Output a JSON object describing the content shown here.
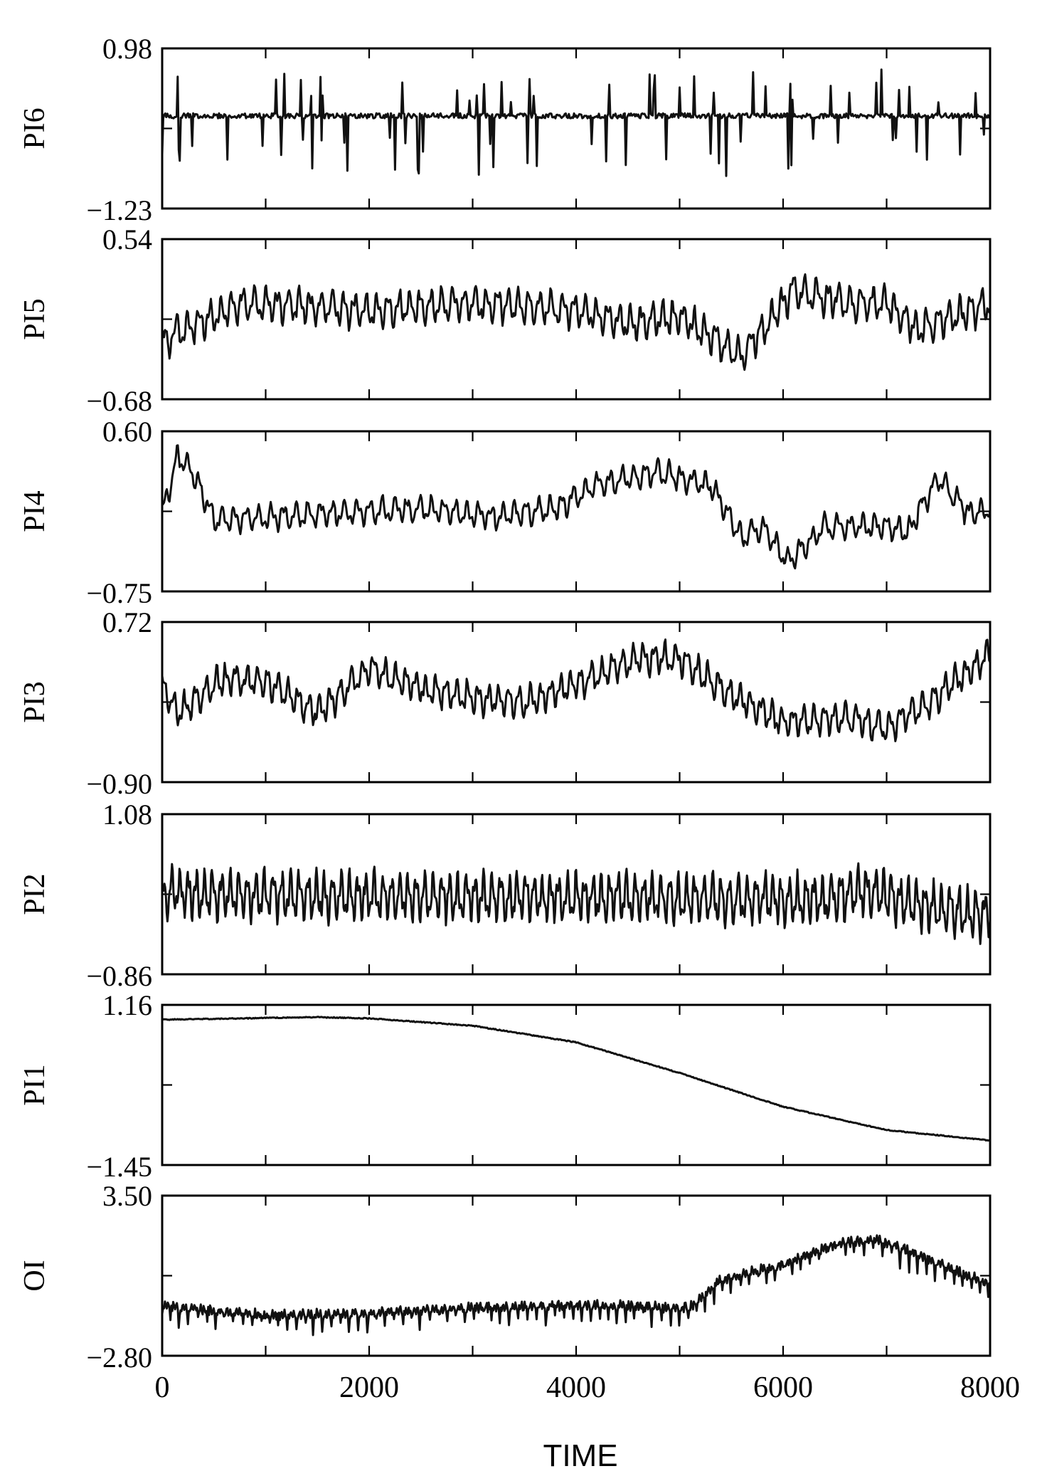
{
  "chart_data": {
    "type": "line",
    "xlabel": "TIME",
    "xlim": [
      0,
      8000
    ],
    "xticks": [
      0,
      2000,
      4000,
      6000,
      8000
    ],
    "panels": [
      {
        "name": "PI6",
        "ylim": [
          -1.23,
          0.98
        ],
        "ymin_label": "−1.23",
        "ymax_label": "0.98",
        "points": 800,
        "pattern": "spiky",
        "seed": 6,
        "base": [
          [
            0,
            0.05
          ],
          [
            8000,
            0.05
          ]
        ],
        "amplitude": 0.07,
        "spike_rate": 0.09,
        "spike_size": 0.55,
        "period": 70
      },
      {
        "name": "PI5",
        "ylim": [
          -0.68,
          0.54
        ],
        "ymin_label": "−0.68",
        "ymax_label": "0.54",
        "points": 900,
        "pattern": "oscillating",
        "seed": 5,
        "base": [
          [
            0,
            -0.25
          ],
          [
            200,
            -0.15
          ],
          [
            800,
            0.05
          ],
          [
            2000,
            0.0
          ],
          [
            3000,
            0.05
          ],
          [
            4000,
            0.0
          ],
          [
            4500,
            -0.1
          ],
          [
            5000,
            -0.05
          ],
          [
            5600,
            -0.35
          ],
          [
            5800,
            -0.15
          ],
          [
            6100,
            0.15
          ],
          [
            6600,
            0.05
          ],
          [
            7000,
            0.05
          ],
          [
            7300,
            -0.15
          ],
          [
            8000,
            0.05
          ]
        ],
        "amplitude": 0.1,
        "period": 110
      },
      {
        "name": "PI4",
        "ylim": [
          -0.75,
          0.6
        ],
        "ymin_label": "−0.75",
        "ymax_label": "0.60",
        "points": 900,
        "pattern": "oscillating",
        "seed": 4,
        "base": [
          [
            0,
            -0.1
          ],
          [
            150,
            0.4
          ],
          [
            300,
            0.25
          ],
          [
            500,
            -0.15
          ],
          [
            1500,
            -0.1
          ],
          [
            2500,
            -0.05
          ],
          [
            3200,
            -0.12
          ],
          [
            3800,
            -0.05
          ],
          [
            4200,
            0.15
          ],
          [
            4800,
            0.25
          ],
          [
            5300,
            0.15
          ],
          [
            5600,
            -0.3
          ],
          [
            5800,
            -0.2
          ],
          [
            6050,
            -0.5
          ],
          [
            6400,
            -0.2
          ],
          [
            7000,
            -0.2
          ],
          [
            7200,
            -0.25
          ],
          [
            7500,
            0.2
          ],
          [
            7800,
            -0.1
          ],
          [
            8000,
            -0.05
          ]
        ],
        "amplitude": 0.08,
        "period": 120
      },
      {
        "name": "PI3",
        "ylim": [
          -0.9,
          0.72
        ],
        "ymin_label": "−0.90",
        "ymax_label": "0.72",
        "points": 900,
        "pattern": "oscillating",
        "seed": 3,
        "base": [
          [
            0,
            0.05
          ],
          [
            150,
            -0.2
          ],
          [
            600,
            0.15
          ],
          [
            1000,
            0.12
          ],
          [
            1500,
            -0.2
          ],
          [
            2000,
            0.25
          ],
          [
            2500,
            0.05
          ],
          [
            3000,
            -0.05
          ],
          [
            3500,
            -0.1
          ],
          [
            4000,
            0.1
          ],
          [
            4600,
            0.35
          ],
          [
            5000,
            0.35
          ],
          [
            5400,
            0.05
          ],
          [
            6000,
            -0.3
          ],
          [
            6600,
            -0.25
          ],
          [
            7000,
            -0.35
          ],
          [
            7400,
            -0.1
          ],
          [
            8000,
            0.4
          ]
        ],
        "amplitude": 0.12,
        "period": 105
      },
      {
        "name": "PI2",
        "ylim": [
          -0.86,
          1.08
        ],
        "ymin_label": "−0.86",
        "ymax_label": "1.08",
        "points": 1100,
        "pattern": "oscillating",
        "seed": 2,
        "base": [
          [
            0,
            0.0
          ],
          [
            100,
            0.2
          ],
          [
            300,
            0.1
          ],
          [
            6400,
            0.05
          ],
          [
            6800,
            0.15
          ],
          [
            7200,
            0.0
          ],
          [
            8000,
            -0.15
          ]
        ],
        "amplitude": 0.22,
        "period": 85
      },
      {
        "name": "PI1",
        "ylim": [
          -1.45,
          1.16
        ],
        "ymin_label": "−1.45",
        "ymax_label": "1.16",
        "points": 800,
        "pattern": "smooth",
        "seed": 1,
        "base": [
          [
            0,
            0.92
          ],
          [
            1500,
            0.96
          ],
          [
            2000,
            0.94
          ],
          [
            3000,
            0.82
          ],
          [
            4000,
            0.55
          ],
          [
            5000,
            0.05
          ],
          [
            6000,
            -0.5
          ],
          [
            7000,
            -0.88
          ],
          [
            8000,
            -1.05
          ]
        ],
        "amplitude": 0.015,
        "period": 40
      },
      {
        "name": "OI",
        "ylim": [
          -2.8,
          3.5
        ],
        "ymin_label": "−2.80",
        "ymax_label": "3.50",
        "points": 900,
        "pattern": "sawtooth",
        "seed": 7,
        "base": [
          [
            0,
            -0.8
          ],
          [
            1000,
            -1.2
          ],
          [
            2000,
            -1.1
          ],
          [
            3000,
            -0.9
          ],
          [
            4000,
            -0.8
          ],
          [
            5100,
            -0.9
          ],
          [
            5400,
            0.2
          ],
          [
            6000,
            0.8
          ],
          [
            6500,
            1.6
          ],
          [
            6900,
            1.8
          ],
          [
            7300,
            1.2
          ],
          [
            8000,
            0.0
          ]
        ],
        "amplitude": 0.5,
        "period": 90
      }
    ]
  }
}
